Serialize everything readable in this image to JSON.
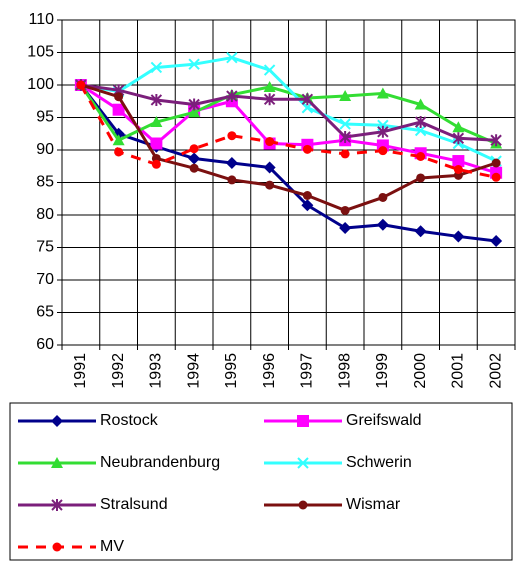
{
  "chart_data": {
    "type": "line",
    "categories": [
      "1991",
      "1992",
      "1993",
      "1994",
      "1995",
      "1996",
      "1997",
      "1998",
      "1999",
      "2000",
      "2001",
      "2002"
    ],
    "ylim": [
      60,
      110
    ],
    "yticks": [
      60,
      65,
      70,
      75,
      80,
      85,
      90,
      95,
      100,
      105,
      110
    ],
    "grid": true,
    "series": [
      {
        "name": "Rostock",
        "color": "#00008b",
        "marker": "diamond",
        "values": [
          100,
          92.5,
          90.5,
          88.7,
          88,
          87.3,
          81.5,
          78,
          78.5,
          77.5,
          76.7,
          76
        ]
      },
      {
        "name": "Greifswald",
        "color": "#ff00ff",
        "marker": "square",
        "values": [
          100,
          96.2,
          91,
          96,
          97.5,
          91,
          90.8,
          91.5,
          90.7,
          89.5,
          88.3,
          86.5
        ]
      },
      {
        "name": "Neubrandenburg",
        "color": "#33dd33",
        "marker": "triangle",
        "values": [
          100,
          91.5,
          94.3,
          95.8,
          98.5,
          99.7,
          98,
          98.3,
          98.7,
          97,
          93.5,
          91
        ]
      },
      {
        "name": "Schwerin",
        "color": "#33ffff",
        "marker": "x",
        "values": [
          100,
          99,
          102.7,
          103.2,
          104.2,
          102.3,
          96.5,
          94,
          93.8,
          93,
          91,
          88.3
        ]
      },
      {
        "name": "Stralsund",
        "color": "#7b1f7b",
        "marker": "asterisk",
        "values": [
          100,
          99.2,
          97.7,
          97,
          98.3,
          97.8,
          97.8,
          92,
          92.8,
          94.3,
          91.8,
          91.5
        ]
      },
      {
        "name": "Wismar",
        "color": "#7b1010",
        "marker": "circle",
        "values": [
          100,
          98.2,
          88.7,
          87.2,
          85.4,
          84.6,
          83,
          80.7,
          82.7,
          85.7,
          86.1,
          88
        ]
      },
      {
        "name": "MV",
        "color": "#ff0000",
        "marker": "circle",
        "dashed": true,
        "values": [
          100,
          89.7,
          87.8,
          90.2,
          92.2,
          91.3,
          90.1,
          89.4,
          89.9,
          89,
          87,
          85.8
        ]
      }
    ]
  }
}
